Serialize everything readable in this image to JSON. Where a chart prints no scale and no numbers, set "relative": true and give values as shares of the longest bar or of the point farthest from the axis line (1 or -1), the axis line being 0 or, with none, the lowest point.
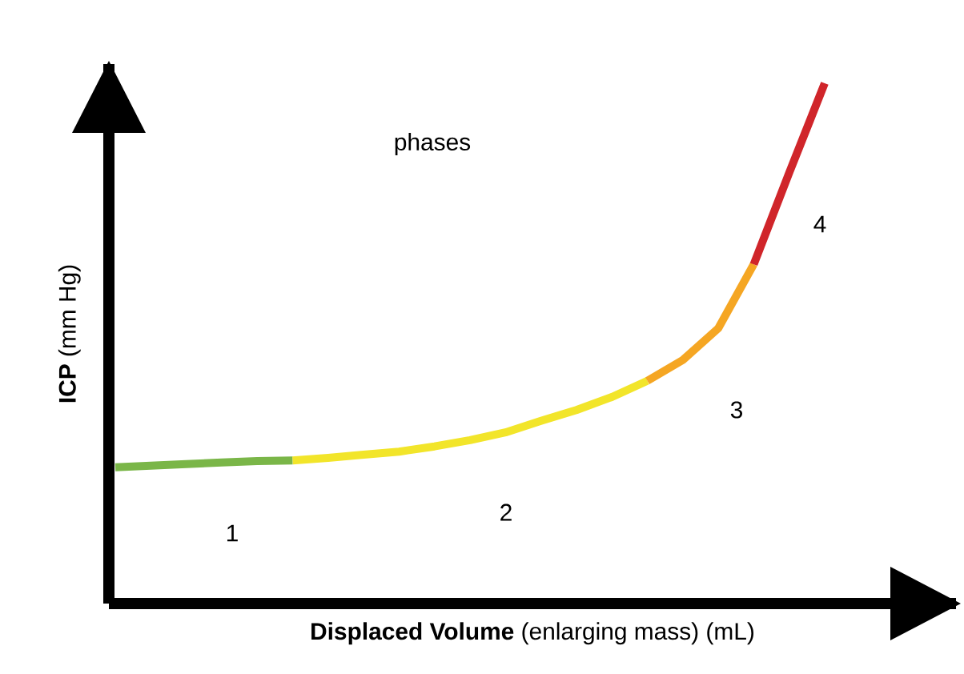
{
  "chart_data": {
    "type": "line",
    "relative": true,
    "xlabel": "**Displaced Volume** (enlarging mass) (mL)",
    "ylabel": "**ICP** (mm Hg)",
    "categories": [
      null,
      null,
      null,
      null,
      null,
      null,
      null,
      null,
      null,
      null,
      null,
      null,
      null,
      null,
      null,
      null,
      null,
      null,
      null,
      null,
      null
    ],
    "series": [
      {
        "color": "#7ab648",
        "values": [
          0.262,
          0.265,
          0.268,
          0.271,
          0.274,
          0.275,
          null,
          null,
          null,
          null,
          null,
          null,
          null,
          null,
          null,
          null,
          null,
          null,
          null,
          null,
          null
        ]
      },
      {
        "color": "#f2e52a",
        "values": [
          null,
          null,
          null,
          null,
          null,
          0.275,
          0.28,
          0.286,
          0.292,
          0.302,
          0.314,
          0.329,
          0.351,
          0.372,
          0.397,
          0.428,
          null,
          null,
          null,
          null,
          null
        ]
      },
      {
        "color": "#f5a623",
        "values": [
          null,
          null,
          null,
          null,
          null,
          null,
          null,
          null,
          null,
          null,
          null,
          null,
          null,
          null,
          null,
          0.428,
          0.468,
          0.529,
          0.652,
          null,
          null
        ]
      },
      {
        "color": "#d0252a",
        "values": [
          null,
          null,
          null,
          null,
          null,
          null,
          null,
          null,
          null,
          null,
          null,
          null,
          null,
          null,
          null,
          null,
          null,
          null,
          0.652,
          0.828,
          1
        ]
      }
    ],
    "annotations": [
      "phases",
      "1",
      "2",
      "3",
      "4"
    ]
  }
}
